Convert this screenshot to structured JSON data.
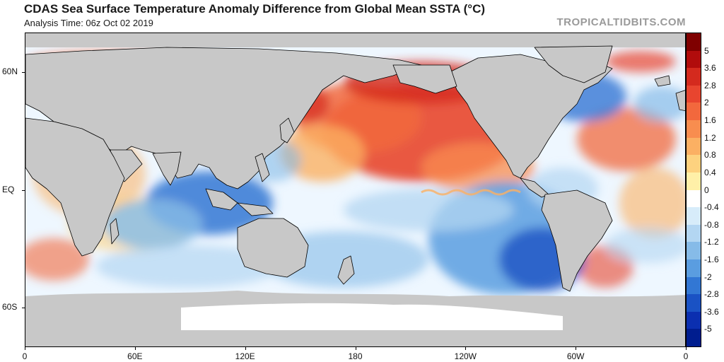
{
  "header": {
    "title": "CDAS Sea Surface Temperature Anomaly Difference from Global Mean SSTA (°C)",
    "subtitle": "Analysis Time: 06z Oct 02 2019",
    "watermark": "TROPICALTIDBITS.COM"
  },
  "map": {
    "projection": "equirectangular",
    "lat_labels": [
      {
        "text": "60N",
        "lat": 60
      },
      {
        "text": "EQ",
        "lat": 0
      },
      {
        "text": "60S",
        "lat": -60
      }
    ],
    "lon_labels": [
      {
        "text": "0",
        "lon": 0
      },
      {
        "text": "60E",
        "lon": 60
      },
      {
        "text": "120E",
        "lon": 120
      },
      {
        "text": "180",
        "lon": 180
      },
      {
        "text": "120W",
        "lon": 240
      },
      {
        "text": "60W",
        "lon": 300
      },
      {
        "text": "0",
        "lon": 360
      }
    ],
    "colors": {
      "land": "#c8c8c8",
      "ocean_neutral": "#ffffff",
      "borders": "#000000"
    }
  },
  "colorbar": {
    "labels": [
      "5",
      "3.6",
      "2.8",
      "2",
      "1.6",
      "1.2",
      "0.8",
      "0.4",
      "0",
      "-0.4",
      "-0.8",
      "-1.2",
      "-1.6",
      "-2",
      "-2.8",
      "-3.6",
      "-5"
    ],
    "colors": [
      "#7f0000",
      "#b10c0c",
      "#d42a1e",
      "#e8452f",
      "#f2683d",
      "#f88d4f",
      "#fbb063",
      "#fdd27f",
      "#fff0a8",
      "#ffffff",
      "#d7ecfa",
      "#b3d6f2",
      "#86bbe8",
      "#5a9de0",
      "#3277d4",
      "#1a52c4",
      "#0b2fb0",
      "#001d8f"
    ]
  }
}
